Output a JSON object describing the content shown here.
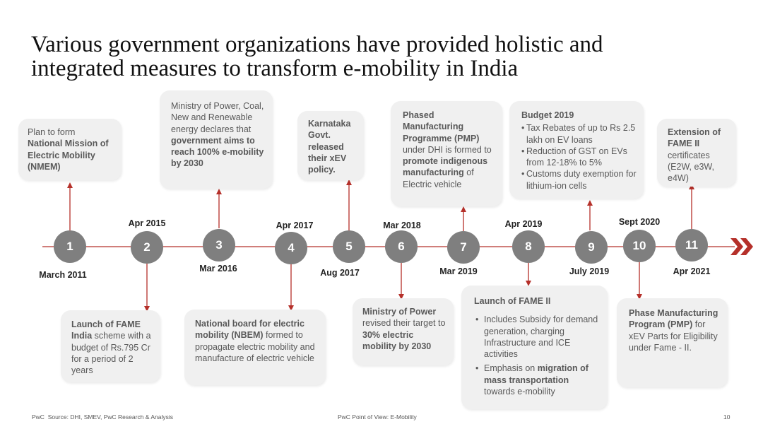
{
  "title": {
    "line1": "Various government organizations have provided holistic and",
    "line2": "integrated measures to transform e-mobility in India"
  },
  "colors": {
    "accent": "#b5302a",
    "node": "#7f7f7f",
    "card": "#f0f0f0"
  },
  "timeline": {
    "nodes": [
      {
        "num": "1",
        "date": "March 2011"
      },
      {
        "num": "2",
        "date": "Apr 2015"
      },
      {
        "num": "3",
        "date": "Mar 2016"
      },
      {
        "num": "4",
        "date": "Apr 2017"
      },
      {
        "num": "5",
        "date": "Aug 2017"
      },
      {
        "num": "6",
        "date": "Mar 2018"
      },
      {
        "num": "7",
        "date": "Mar 2019"
      },
      {
        "num": "8",
        "date": "Apr 2019"
      },
      {
        "num": "9",
        "date": "July 2019"
      },
      {
        "num": "10",
        "date": "Sept 2020"
      },
      {
        "num": "11",
        "date": "Apr 2021"
      }
    ]
  },
  "events": {
    "e1": {
      "pre": "Plan to form",
      "bold": "National Mission of Electric Mobility (NMEM)"
    },
    "e2": {
      "b1": "Launch of FAME India",
      "t1": " scheme with a budget of Rs.795 Cr for a period of 2 years"
    },
    "e3": {
      "t1": "Ministry of Power, Coal, New and Renewable energy declares that ",
      "b1": "government aims to reach 100% e-mobility by 2030"
    },
    "e4": {
      "b1": "National board for electric mobility (NBEM)",
      "t1": " formed to propagate electric mobility and manufacture of electric vehicle"
    },
    "e5": {
      "b1": "Karnataka Govt. released their xEV policy."
    },
    "e6": {
      "b1": "Ministry of Power",
      "t1": " revised their target to ",
      "b2": "30% electric mobility by 2030"
    },
    "e7": {
      "b1": "Phased Manufacturing Programme (PMP)",
      "t1": " under DHI is formed to ",
      "b2": "promote indigenous manufacturing",
      "t2": " of Electric vehicle"
    },
    "e8": {
      "heading": "Launch of FAME II",
      "item1": "Includes Subsidy for demand generation, charging Infrastructure and ICE activities",
      "item2_pre": "Emphasis on ",
      "item2_bold": "migration of mass transportation",
      "item2_post": " towards e-mobility"
    },
    "e9": {
      "heading": "Budget 2019",
      "item1": "Tax Rebates of up to Rs 2.5 lakh on EV loans",
      "item2": "Reduction of GST on EVs from 12-18% to 5%",
      "item3": "Customs duty exemption for lithium-ion cells"
    },
    "e10": {
      "b1": "Phase Manufacturing Program (PMP)",
      "t1": " for xEV Parts for Eligibility under Fame - II."
    },
    "e11": {
      "b1": "Extension of FAME II",
      "t1": " certificates (E2W, e3W, e4W)"
    }
  },
  "footer": {
    "brand": "PwC",
    "source": "Source: DHI, SMEV, PwC Research & Analysis",
    "center": "PwC Point of View: E-Mobility",
    "page": "10"
  }
}
